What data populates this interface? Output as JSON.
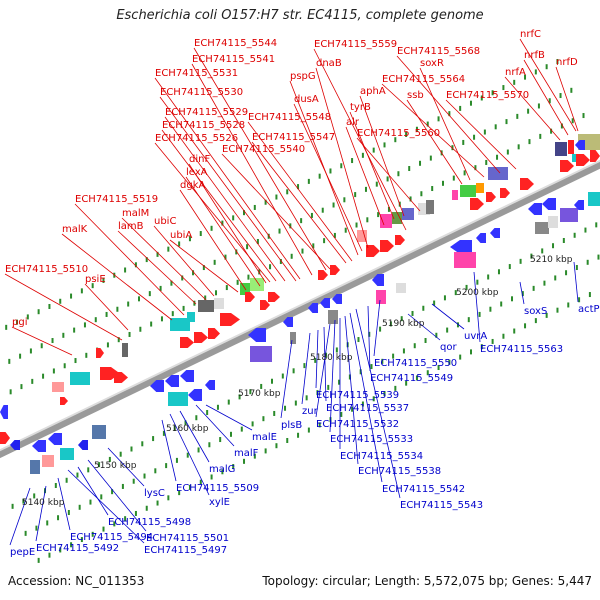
{
  "title": "Escherichia coli O157:H7 str. EC4115, complete genome",
  "accession": "Accession: NC_011353",
  "stats": "Topology: circular; Length: 5,572,075 bp; Genes: 5,447",
  "colors": {
    "forward_label": "#dd0000",
    "reverse_label": "#0000cc",
    "backbone": "#9a9a9a"
  },
  "forward_genes": [
    "pgi",
    "ECH74115_5510",
    "psiE",
    "malK",
    "ECH74115_5519",
    "lamB",
    "malM",
    "ubiC",
    "ubiA",
    "dgkA",
    "lexA",
    "dinF",
    "ECH74115_5526",
    "ECH74115_5528",
    "ECH74115_5529",
    "ECH74115_5530",
    "ECH74115_5531",
    "ECH74115_5541",
    "ECH74115_5544",
    "ECH74115_5540",
    "ECH74115_5547",
    "ECH74115_5548",
    "pspG",
    "dusA",
    "dnaB",
    "ECH74115_5559",
    "alr",
    "tyrB",
    "aphA",
    "ECH74115_5560",
    "ssb",
    "soxR",
    "ECH74115_5564",
    "ECH74115_5568",
    "ECH74115_5570",
    "nrfA",
    "nrfB",
    "nrfC",
    "nrfD"
  ],
  "reverse_genes": [
    "pepE",
    "ECH74115_5492",
    "ECH74115_5494",
    "ECH74115_5497",
    "ECH74115_5498",
    "ECH74115_5501",
    "xylE",
    "lysC",
    "ECH74115_5509",
    "malG",
    "malF",
    "malE",
    "plsB",
    "zur",
    "ECH74115_5539",
    "ECH74115_5537",
    "ECH74115_5532",
    "ECH74115_5533",
    "ECH74115_5534",
    "ECH74115_5538",
    "ECH74115_5542",
    "ECH74115_5543",
    "ECH74115_5549",
    "ECH74115_5550",
    "uvrA",
    "qor",
    "ECH74115_5563",
    "soxS",
    "actP"
  ],
  "scale_labels": [
    "5140 kbp",
    "5150 kbp",
    "5160 kbp",
    "5170 kbp",
    "5180 kbp",
    "5190 kbp",
    "5200 kbp",
    "5210 kbp"
  ]
}
